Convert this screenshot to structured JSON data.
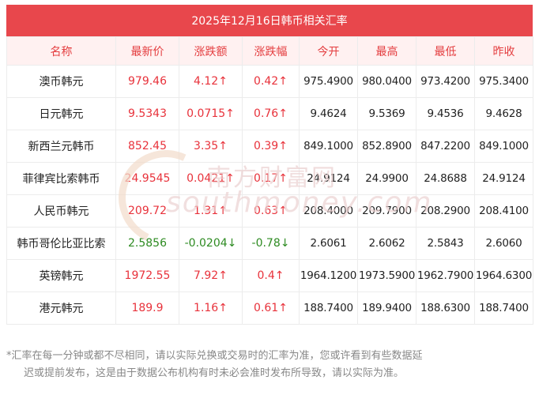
{
  "title": "2025年12月16日韩币相关汇率",
  "headers": [
    "名称",
    "最新价",
    "涨跌额",
    "涨跌幅",
    "今开",
    "最高",
    "最低",
    "昨收"
  ],
  "rows": [
    {
      "name": "澳币韩元",
      "latest": "979.46",
      "change": "4.12↑",
      "change_pct": "0.42↑",
      "open": "975.4900",
      "high": "980.0400",
      "low": "973.4200",
      "prev_close": "975.3400",
      "direction": "up"
    },
    {
      "name": "日元韩元",
      "latest": "9.5343",
      "change": "0.0715↑",
      "change_pct": "0.76↑",
      "open": "9.4624",
      "high": "9.5369",
      "low": "9.4536",
      "prev_close": "9.4628",
      "direction": "up"
    },
    {
      "name": "新西兰元韩币",
      "latest": "852.45",
      "change": "3.35↑",
      "change_pct": "0.39↑",
      "open": "849.1000",
      "high": "852.8900",
      "low": "847.2200",
      "prev_close": "849.1000",
      "direction": "up"
    },
    {
      "name": "菲律宾比索韩币",
      "latest": "24.9545",
      "change": "0.0421↑",
      "change_pct": "0.17↑",
      "open": "24.9124",
      "high": "24.9900",
      "low": "24.8688",
      "prev_close": "24.9124",
      "direction": "up"
    },
    {
      "name": "人民币韩元",
      "latest": "209.72",
      "change": "1.31↑",
      "change_pct": "0.63↑",
      "open": "208.4000",
      "high": "209.7900",
      "low": "208.2900",
      "prev_close": "208.4100",
      "direction": "up"
    },
    {
      "name": "韩币哥伦比亚比索",
      "latest": "2.5856",
      "change": "-0.0204↓",
      "change_pct": "-0.78↓",
      "open": "2.6061",
      "high": "2.6062",
      "low": "2.5843",
      "prev_close": "2.6060",
      "direction": "down"
    },
    {
      "name": "英镑韩元",
      "latest": "1972.55",
      "change": "7.92↑",
      "change_pct": "0.4↑",
      "open": "1964.1200",
      "high": "1973.5900",
      "low": "1962.7900",
      "prev_close": "1964.6300",
      "direction": "up"
    },
    {
      "name": "港元韩元",
      "latest": "189.9",
      "change": "1.16↑",
      "change_pct": "0.61↑",
      "open": "188.7400",
      "high": "189.9400",
      "low": "188.6300",
      "prev_close": "188.7400",
      "direction": "up"
    }
  ],
  "watermark": {
    "cn": "南方财富网",
    "en": "southmoney.com"
  },
  "footnote": {
    "line1": "*汇率在每一分钟或都不尽相同，请以实际兑换或交易时的汇率为准，您或许看到有些数据延",
    "line2": "迟或提前发布，这是由于数据公布机构有时未必会准时发布所导致，请以实际为准。"
  },
  "colors": {
    "header_bg": "#e8474c",
    "up": "#e8323b",
    "down": "#2e8b22",
    "head_text": "#e43d3f"
  }
}
